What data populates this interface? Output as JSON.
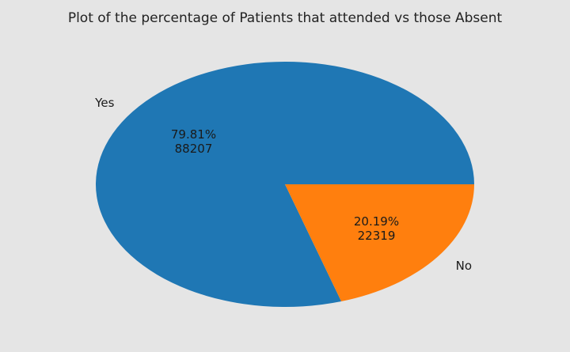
{
  "chart_data": {
    "type": "pie",
    "title": "Plot of the percentage of Patients that attended vs those Absent",
    "categories": [
      "Yes",
      "No"
    ],
    "values": [
      88207,
      22319
    ],
    "percentages": [
      "79.81%",
      "20.19%"
    ],
    "value_labels": [
      "88207",
      "22319"
    ],
    "colors": [
      "#1f77b4",
      "#ff7f0e"
    ],
    "start_angle_deg": 0,
    "direction": "counterclockwise"
  }
}
